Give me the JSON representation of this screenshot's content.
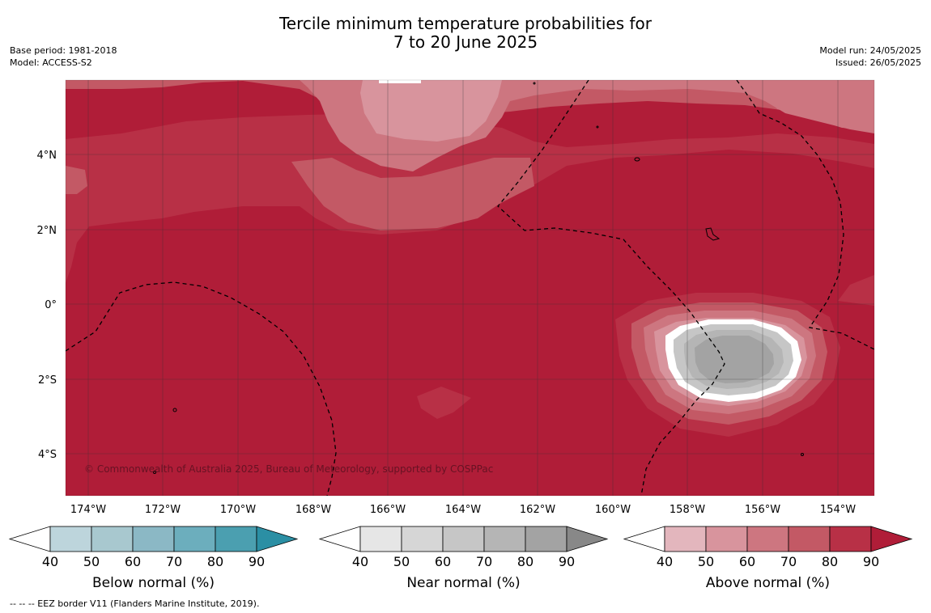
{
  "title": {
    "line1": "Tercile minimum temperature probabilities for",
    "line2": "7 to 20 June 2025"
  },
  "meta_left": {
    "base_period": "Base period: 1981-2018",
    "model": "Model: ACCESS-S2"
  },
  "meta_right": {
    "model_run": "Model run: 24/05/2025",
    "issued": "Issued: 26/05/2025"
  },
  "map": {
    "lat_labels": [
      "4°N",
      "2°N",
      "0°",
      "2°S",
      "4°S"
    ],
    "lon_labels": [
      "174°W",
      "172°W",
      "170°W",
      "168°W",
      "166°W",
      "164°W",
      "162°W",
      "160°W",
      "158°W",
      "156°W",
      "154°W"
    ],
    "copyright": "© Commonwealth of Australia 2025, Bureau of Meteorology, supported by COSPPac",
    "colors": {
      "above": [
        "#e3b6bd",
        "#d8949d",
        "#cd7680",
        "#c35965",
        "#b83046",
        "#b01d38"
      ],
      "near": [
        "#e6e6e6",
        "#d6d6d6",
        "#c6c6c6",
        "#b5b5b5",
        "#a3a3a3",
        "#888888"
      ],
      "below": [
        "#bdd5dc",
        "#a8c8cf",
        "#8bb8c5",
        "#6caebd",
        "#4b9fb0",
        "#2b8fa4"
      ]
    }
  },
  "colorbars": [
    {
      "label": "Below normal (%)",
      "ticks": [
        "40",
        "50",
        "60",
        "70",
        "80",
        "90"
      ],
      "scheme": "below"
    },
    {
      "label": "Near normal (%)",
      "ticks": [
        "40",
        "50",
        "60",
        "70",
        "80",
        "90"
      ],
      "scheme": "near"
    },
    {
      "label": "Above normal (%)",
      "ticks": [
        "40",
        "50",
        "60",
        "70",
        "80",
        "90"
      ],
      "scheme": "above"
    }
  ],
  "footer": {
    "eez_note": "-- -- -- EEZ border V11 (Flanders Marine Institute, 2019)."
  }
}
